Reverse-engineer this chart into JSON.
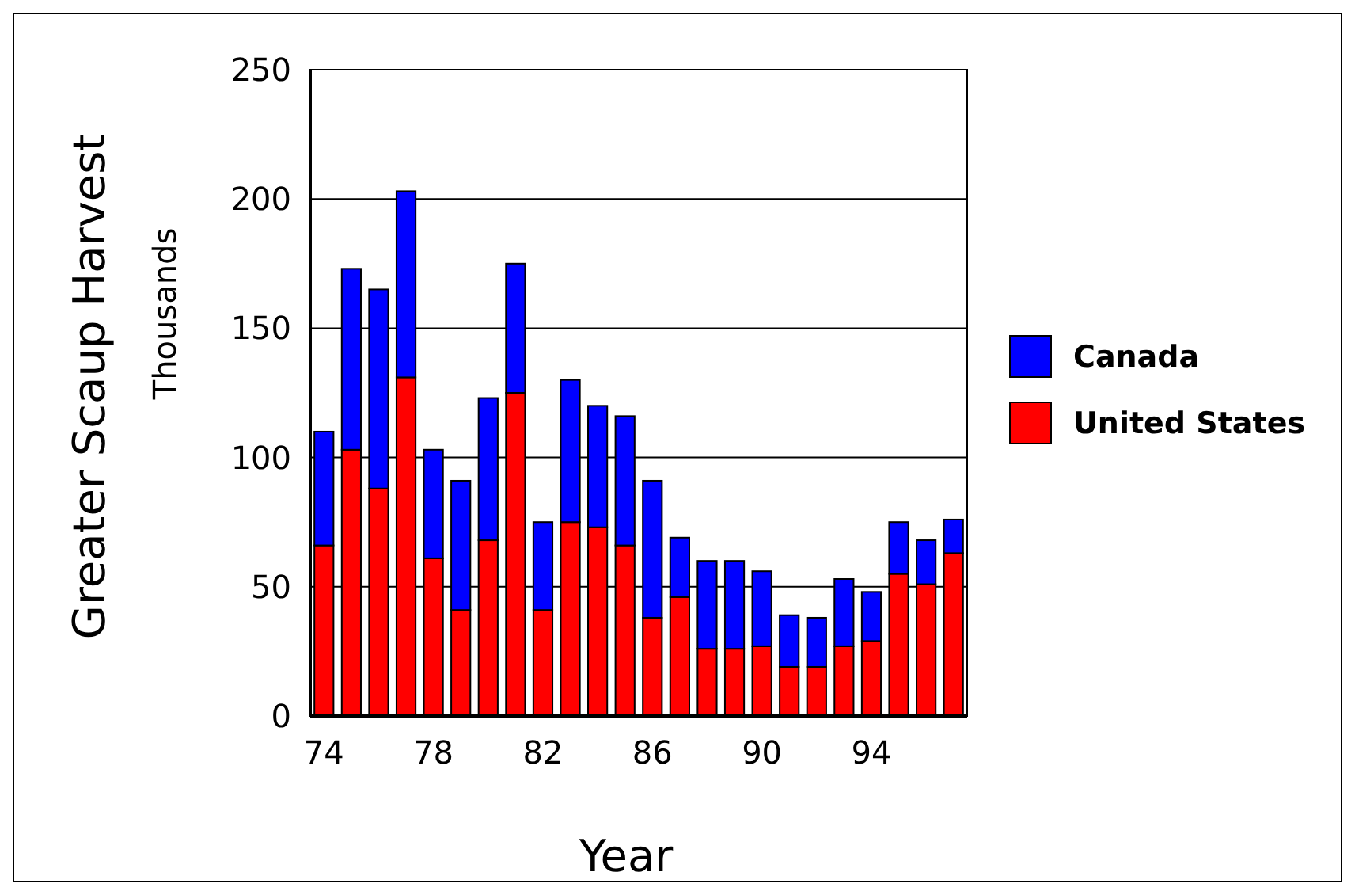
{
  "chart_data": {
    "type": "bar",
    "stacked": true,
    "xlabel": "Year",
    "ylabel": "Greater Scaup Harvest",
    "annotations": [
      "Thousands"
    ],
    "categories": [
      "74",
      null,
      null,
      null,
      "78",
      null,
      null,
      null,
      "82",
      null,
      null,
      null,
      "86",
      null,
      null,
      null,
      "90",
      null,
      null,
      null,
      "94",
      null,
      null,
      null
    ],
    "series": [
      {
        "name": "United States",
        "color": "#ff0000",
        "values": [
          66,
          103,
          88,
          131,
          61,
          41,
          68,
          125,
          41,
          75,
          73,
          66,
          38,
          46,
          26,
          26,
          27,
          19,
          19,
          27,
          29,
          55,
          51,
          63
        ]
      },
      {
        "name": "Canada",
        "color": "#0000ff",
        "values": [
          44,
          70,
          77,
          72,
          42,
          50,
          55,
          50,
          34,
          55,
          47,
          50,
          53,
          23,
          34,
          34,
          29,
          20,
          19,
          26,
          19,
          20,
          17,
          13
        ]
      }
    ],
    "ylim": [
      0,
      250
    ],
    "yticks": [
      0,
      50,
      100,
      150,
      200,
      250
    ],
    "grid": "y",
    "legend": "right"
  }
}
